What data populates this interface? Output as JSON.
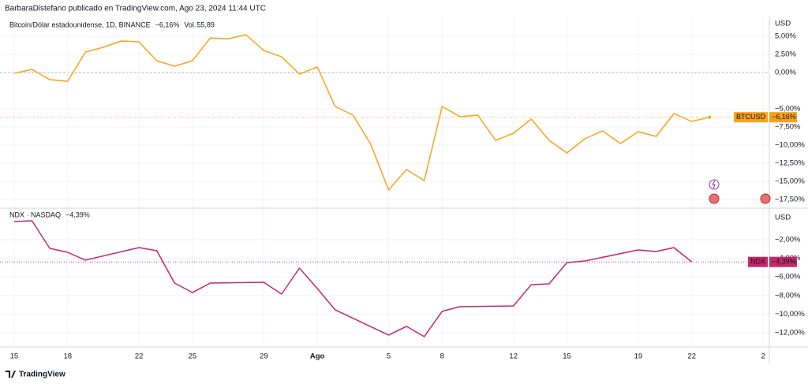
{
  "header": {
    "text": "BarbaraDistefano publicado en TradingView.com, Ago 23, 2024 11:44 UTC"
  },
  "footer": {
    "brand": "TradingView"
  },
  "chart_data": [
    {
      "type": "line",
      "title": "Bitcoin/Dólar estadounidense, 1D, BINANCE",
      "change_label": "−6,16%",
      "volume_caption": "Vol.",
      "volume_label": "55,89",
      "axis_unit": "USD",
      "tag": "BTCUSD",
      "color": "#f7a21b",
      "grid": true,
      "x": [
        0,
        1,
        2,
        3,
        4,
        5,
        6,
        7,
        8,
        9,
        10,
        11,
        12,
        13,
        14,
        15,
        16,
        17,
        18,
        19,
        20,
        21,
        22,
        23,
        24,
        25,
        26,
        27,
        28,
        29,
        30,
        31,
        32,
        33,
        34,
        35,
        36,
        37,
        38,
        39
      ],
      "values": [
        -0.11,
        0.43,
        -0.98,
        -1.2,
        2.83,
        3.48,
        4.35,
        4.24,
        1.63,
        0.87,
        1.63,
        4.78,
        4.67,
        5.22,
        3.04,
        2.17,
        -0.22,
        0.76,
        -4.67,
        -5.87,
        -9.89,
        -16.2,
        -13.37,
        -14.89,
        -4.67,
        -6.09,
        -5.87,
        -9.35,
        -8.37,
        -6.41,
        -9.35,
        -11.09,
        -9.13,
        -8.04,
        -9.78,
        -8.15,
        -8.8,
        -5.65,
        -6.74,
        -6.16
      ],
      "xlim": [
        -0.44,
        42.35
      ],
      "ylim": [
        -18.48,
        7.83
      ],
      "yticks": [
        {
          "value": 5,
          "label": "5,00%"
        },
        {
          "value": 2.5,
          "label": "2,50%"
        },
        {
          "value": 0,
          "label": "0,00%"
        },
        {
          "value": -5,
          "label": "−5,00%"
        },
        {
          "value": -7.5,
          "label": "−7,50%"
        },
        {
          "value": -10,
          "label": "−10,00%"
        },
        {
          "value": -12.5,
          "label": "−12,50%"
        },
        {
          "value": -15,
          "label": "−15,00%"
        },
        {
          "value": -17.5,
          "label": "−17,50%"
        }
      ]
    },
    {
      "type": "line",
      "title": "NDX · NASDAQ",
      "change_label": "−4,39%",
      "axis_unit": "USD",
      "tag": "NDX",
      "color": "#c2286a",
      "grid": true,
      "x": [
        0,
        1,
        2,
        3,
        4,
        7,
        8,
        9,
        10,
        11,
        14,
        15,
        16,
        17,
        18,
        21,
        22,
        23,
        24,
        25,
        28,
        29,
        30,
        31,
        32,
        35,
        36,
        37,
        38
      ],
      "values": [
        -0.05,
        0.03,
        -2.93,
        -3.36,
        -4.2,
        -2.85,
        -3.19,
        -6.66,
        -7.68,
        -6.66,
        -6.58,
        -7.85,
        -5.05,
        -7.25,
        -9.54,
        -12.25,
        -11.32,
        -12.42,
        -9.71,
        -9.2,
        -9.12,
        -6.83,
        -6.75,
        -4.46,
        -4.29,
        -3.1,
        -3.27,
        -2.85,
        -4.39
      ],
      "xlim": [
        -0.44,
        42.35
      ],
      "ylim": [
        -13.53,
        1.22
      ],
      "yticks": [
        {
          "value": -2,
          "label": "−2,00%"
        },
        {
          "value": -4,
          "label": "−4,00%"
        },
        {
          "value": -6,
          "label": "−6,00%"
        },
        {
          "value": -8,
          "label": "−8,00%"
        },
        {
          "value": -10,
          "label": "−10,00%"
        },
        {
          "value": -12,
          "label": "−12,00%"
        }
      ],
      "xticks": [
        {
          "value": 0,
          "label": "15"
        },
        {
          "value": 3,
          "label": "18"
        },
        {
          "value": 7,
          "label": "22"
        },
        {
          "value": 10,
          "label": "25"
        },
        {
          "value": 14,
          "label": "29"
        },
        {
          "value": 17,
          "label": "Ago"
        },
        {
          "value": 21,
          "label": "5"
        },
        {
          "value": 24,
          "label": "8"
        },
        {
          "value": 28,
          "label": "12"
        },
        {
          "value": 31,
          "label": "15"
        },
        {
          "value": 35,
          "label": "19"
        },
        {
          "value": 38,
          "label": "22"
        },
        {
          "value": 42,
          "label": "2"
        }
      ]
    }
  ]
}
